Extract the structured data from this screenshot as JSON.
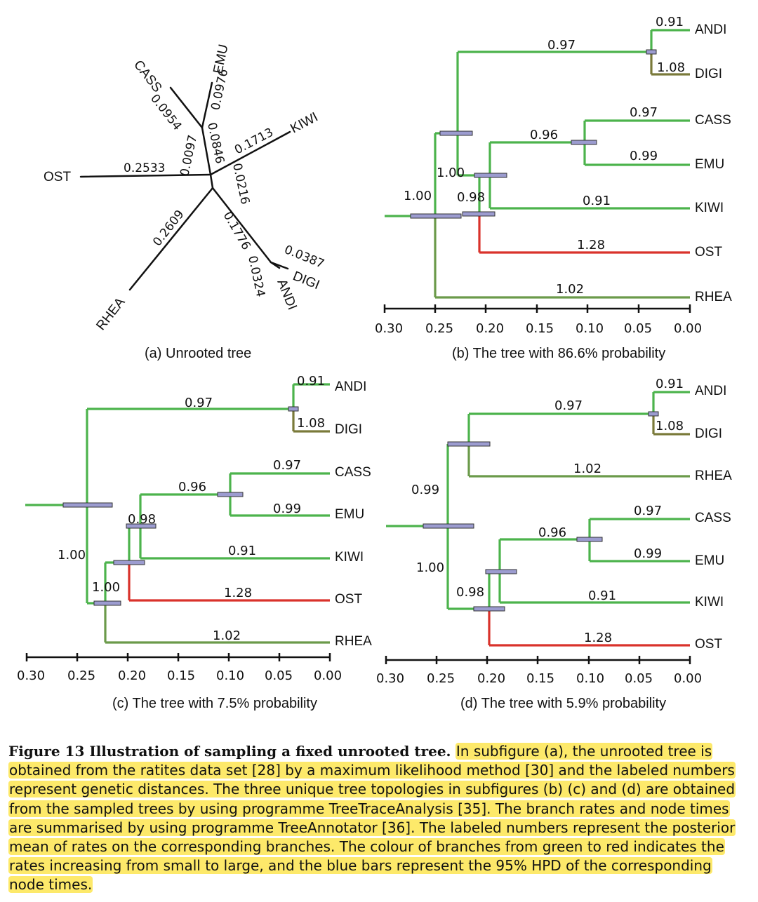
{
  "colors": {
    "branch_low": "#4cb34c",
    "branch_mid": "#6b9a4a",
    "branch_olive": "#7a7a3a",
    "branch_high": "#d9322b",
    "hpd_bar": "#9c9cd0",
    "highlight": "#fde96a"
  },
  "panels": [
    {
      "id": "a",
      "caption": "(a) Unrooted tree",
      "tips": [
        "OST",
        "CASS",
        "EMU",
        "KIWI",
        "DIGI",
        "ANDI",
        "RHEA"
      ],
      "distances": [
        "0.2533",
        "0.0954",
        "0.0976",
        "0.0097",
        "0.0846",
        "0.1713",
        "0.0216",
        "0.2609",
        "0.1776",
        "0.0387",
        "0.0324"
      ]
    },
    {
      "id": "b",
      "caption": "(b) The tree with 86.6% probability",
      "tips": [
        "ANDI",
        "DIGI",
        "CASS",
        "EMU",
        "KIWI",
        "OST",
        "RHEA"
      ],
      "rates": [
        "0.91",
        "1.08",
        "0.97",
        "0.97",
        "0.96",
        "0.99",
        "1.00",
        "0.98",
        "0.91",
        "1.00",
        "1.28",
        "1.02"
      ]
    },
    {
      "id": "c",
      "caption": "(c) The tree with 7.5% probability",
      "tips": [
        "ANDI",
        "DIGI",
        "CASS",
        "EMU",
        "KIWI",
        "OST",
        "RHEA"
      ],
      "rates": [
        "0.91",
        "1.08",
        "0.97",
        "0.97",
        "0.96",
        "0.99",
        "0.98",
        "0.91",
        "1.00",
        "1.00",
        "1.28",
        "1.02"
      ]
    },
    {
      "id": "d",
      "caption": "(d) The tree with 5.9% probability",
      "tips": [
        "ANDI",
        "DIGI",
        "RHEA",
        "CASS",
        "EMU",
        "KIWI",
        "OST"
      ],
      "rates": [
        "0.91",
        "1.08",
        "0.97",
        "1.02",
        "0.99",
        "0.97",
        "0.96",
        "0.99",
        "1.00",
        "0.98",
        "0.91",
        "1.28"
      ]
    }
  ],
  "axis_ticks": [
    "0.30",
    "0.25",
    "0.20",
    "0.15",
    "0.10",
    "0.05",
    "0.00"
  ],
  "caption": {
    "title": "Figure 13 Illustration of sampling a fixed unrooted tree.",
    "body": "In subfigure (a), the unrooted tree is obtained from the ratites data set [28] by a maximum likelihood method [30] and the labeled numbers represent genetic distances. The three unique tree topologies in subfigures (b) (c) and (d) are obtained from the sampled trees by using programme TreeTraceAnalysis [35]. The branch rates and node times are summarised by using programme TreeAnnotator [36]. The labeled numbers represent the posterior mean of rates on the corresponding branches. The colour of branches from green to red indicates the rates increasing from small to large, and the blue bars represent the 95% HPD of the corresponding node times."
  }
}
